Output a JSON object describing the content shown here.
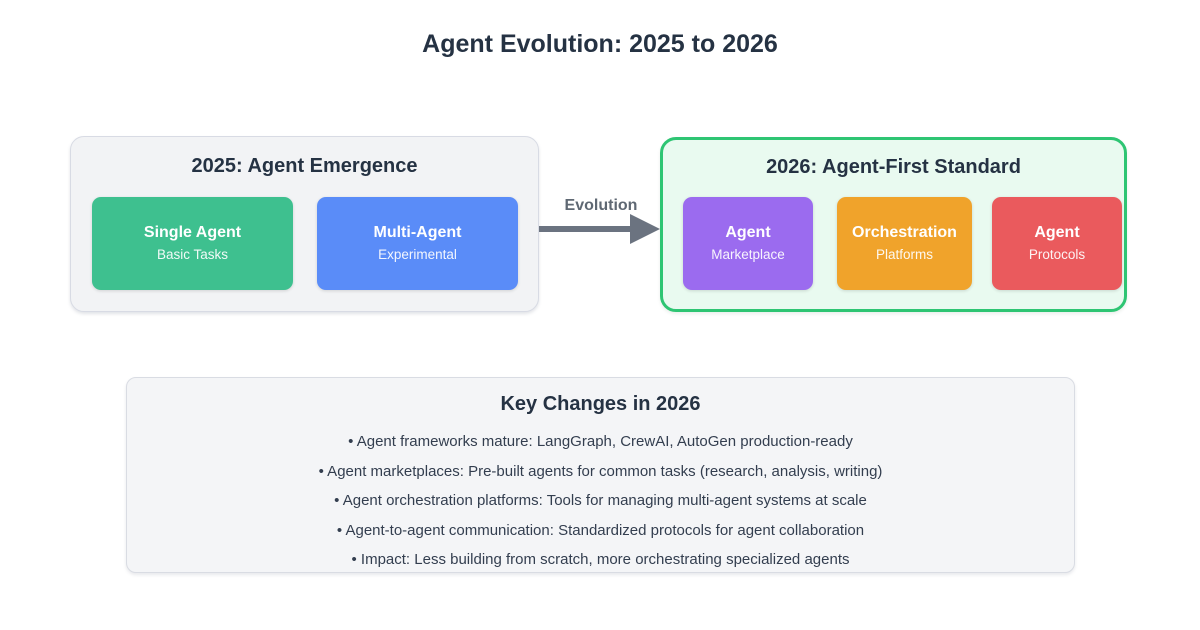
{
  "page": {
    "title": "Agent Evolution: 2025 to 2026"
  },
  "colors": {
    "heading_text": "#253243",
    "body_text": "#333e4f",
    "arrow_gray": "#6b7380",
    "panel_2025_bg": "#f2f3f5",
    "panel_2026_bg": "#e9faf0",
    "panel_2026_border": "#2ec573",
    "key_changes_bg": "#f4f5f7",
    "card_green": "#3ec08f",
    "card_blue": "#5a8cf8",
    "card_purple": "#9b6bef",
    "card_orange": "#f0a32b",
    "card_red": "#ea5a5d"
  },
  "panel_2025": {
    "title": "2025: Agent Emergence",
    "cards": [
      {
        "title": "Single Agent",
        "subtitle": "Basic Tasks",
        "color": "#3ec08f"
      },
      {
        "title": "Multi-Agent",
        "subtitle": "Experimental",
        "color": "#5a8cf8"
      }
    ]
  },
  "arrow": {
    "label": "Evolution"
  },
  "panel_2026": {
    "title": "2026: Agent-First Standard",
    "cards": [
      {
        "title": "Agent",
        "subtitle": "Marketplace",
        "color": "#9b6bef"
      },
      {
        "title": "Orchestration",
        "subtitle": "Platforms",
        "color": "#f0a32b"
      },
      {
        "title": "Agent",
        "subtitle": "Protocols",
        "color": "#ea5a5d"
      }
    ]
  },
  "key_changes": {
    "title": "Key Changes in 2026",
    "bullets": [
      "• Agent frameworks mature: LangGraph, CrewAI, AutoGen production-ready",
      "• Agent marketplaces: Pre-built agents for common tasks (research, analysis, writing)",
      "• Agent orchestration platforms: Tools for managing multi-agent systems at scale",
      "• Agent-to-agent communication: Standardized protocols for agent collaboration",
      "• Impact: Less building from scratch, more orchestrating specialized agents"
    ]
  }
}
